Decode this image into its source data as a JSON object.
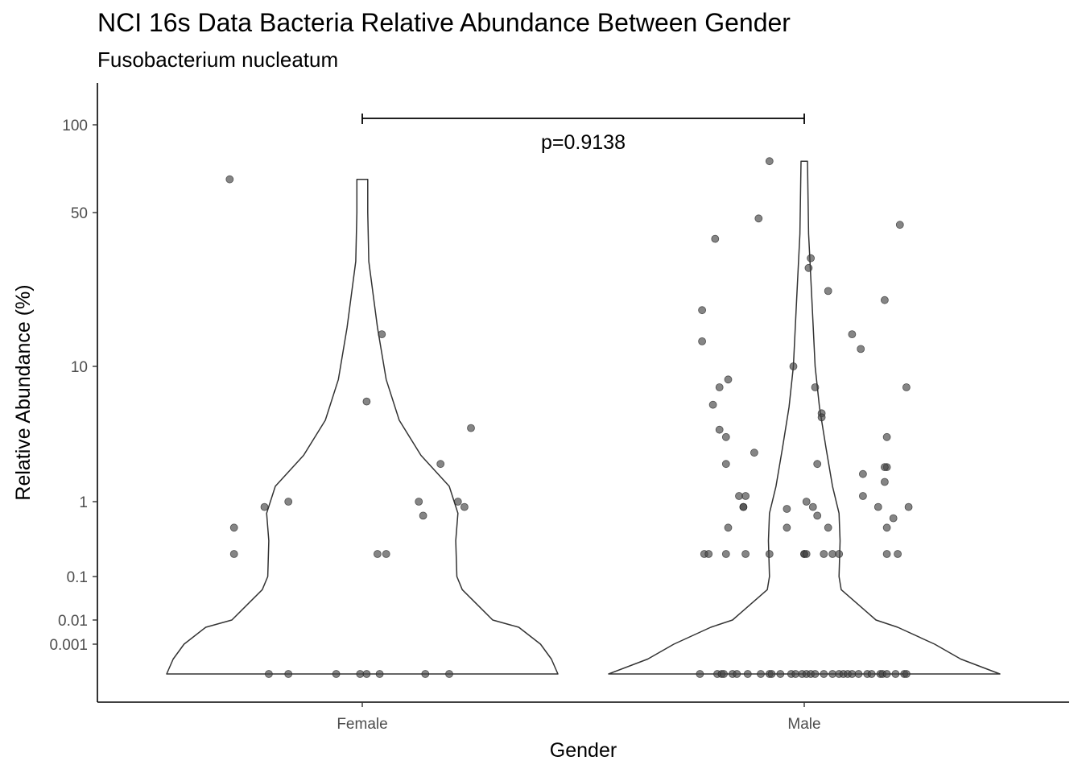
{
  "title": "NCI 16s Data Bacteria Relative Abundance Between Gender",
  "subtitle": "Fusobacterium nucleatum",
  "chart_data": {
    "type": "violin",
    "title": "NCI 16s Data Bacteria Relative Abundance Between Gender",
    "subtitle": "Fusobacterium nucleatum",
    "xlabel": "Gender",
    "ylabel": "Relative Abundance (%)",
    "categories": [
      "Female",
      "Male"
    ],
    "y_scale": "log-like",
    "y_ticks": [
      {
        "value": 100,
        "label": "100"
      },
      {
        "value": 50,
        "label": "50"
      },
      {
        "value": 10,
        "label": "10"
      },
      {
        "value": 1,
        "label": "1"
      },
      {
        "value": 0.1,
        "label": "0.1"
      },
      {
        "value": 0.01,
        "label": "0.01"
      },
      {
        "value": 0.001,
        "label": "0.001"
      }
    ],
    "annotation": {
      "text": "p=0.9138",
      "from": "Female",
      "to": "Male"
    },
    "violin_color": "#333333",
    "point_color": "#444444",
    "points": {
      "Female": [
        {
          "x": -0.61,
          "y": 65
        },
        {
          "x": -0.59,
          "y": 0.45
        },
        {
          "x": -0.59,
          "y": 0.2
        },
        {
          "x": -0.45,
          "y": 0.85
        },
        {
          "x": -0.34,
          "y": 1.0
        },
        {
          "x": 0.02,
          "y": 5.5
        },
        {
          "x": 0.09,
          "y": 14
        },
        {
          "x": 0.07,
          "y": 0.2
        },
        {
          "x": 0.11,
          "y": 0.2
        },
        {
          "x": 0.26,
          "y": 1.0
        },
        {
          "x": 0.28,
          "y": 0.65
        },
        {
          "x": 0.36,
          "y": 1.9
        },
        {
          "x": 0.44,
          "y": 1.0
        },
        {
          "x": 0.47,
          "y": 0.85
        },
        {
          "x": 0.5,
          "y": 3.5
        },
        {
          "x": -0.43,
          "y": 0
        },
        {
          "x": -0.34,
          "y": 0
        },
        {
          "x": -0.12,
          "y": 0
        },
        {
          "x": -0.01,
          "y": 0
        },
        {
          "x": 0.02,
          "y": 0
        },
        {
          "x": 0.08,
          "y": 0
        },
        {
          "x": 0.29,
          "y": 0
        },
        {
          "x": 0.4,
          "y": 0
        }
      ],
      "Male": [
        {
          "x": 0.0,
          "y": 0.2
        },
        {
          "x": 0.0,
          "y": 0.2
        },
        {
          "x": 0.09,
          "y": 0.2
        },
        {
          "x": 0.13,
          "y": 0.2
        },
        {
          "x": 0.16,
          "y": 0.2
        },
        {
          "x": 0.38,
          "y": 0.2
        },
        {
          "x": 0.43,
          "y": 0.2
        },
        {
          "x": -0.46,
          "y": 0.2
        },
        {
          "x": -0.44,
          "y": 0.2
        },
        {
          "x": -0.36,
          "y": 0.2
        },
        {
          "x": -0.27,
          "y": 0.2
        },
        {
          "x": -0.16,
          "y": 0.2
        },
        {
          "x": 0.01,
          "y": 0.2
        },
        {
          "x": -0.16,
          "y": 75
        },
        {
          "x": -0.21,
          "y": 47
        },
        {
          "x": -0.41,
          "y": 38
        },
        {
          "x": 0.03,
          "y": 31
        },
        {
          "x": 0.02,
          "y": 28
        },
        {
          "x": 0.44,
          "y": 44
        },
        {
          "x": 0.11,
          "y": 22
        },
        {
          "x": 0.37,
          "y": 20
        },
        {
          "x": -0.47,
          "y": 18
        },
        {
          "x": -0.47,
          "y": 13
        },
        {
          "x": 0.22,
          "y": 14
        },
        {
          "x": 0.26,
          "y": 12
        },
        {
          "x": -0.05,
          "y": 10
        },
        {
          "x": -0.35,
          "y": 8
        },
        {
          "x": -0.39,
          "y": 7
        },
        {
          "x": 0.05,
          "y": 7
        },
        {
          "x": 0.47,
          "y": 7
        },
        {
          "x": -0.42,
          "y": 5.2
        },
        {
          "x": 0.08,
          "y": 4.5
        },
        {
          "x": 0.08,
          "y": 4.2
        },
        {
          "x": -0.39,
          "y": 3.4
        },
        {
          "x": -0.36,
          "y": 3.0
        },
        {
          "x": 0.38,
          "y": 3.0
        },
        {
          "x": -0.23,
          "y": 2.3
        },
        {
          "x": -0.36,
          "y": 1.9
        },
        {
          "x": 0.06,
          "y": 1.9
        },
        {
          "x": 0.38,
          "y": 1.8
        },
        {
          "x": 0.37,
          "y": 1.8
        },
        {
          "x": 0.27,
          "y": 1.6
        },
        {
          "x": 0.37,
          "y": 1.4
        },
        {
          "x": -0.3,
          "y": 1.1
        },
        {
          "x": -0.27,
          "y": 1.1
        },
        {
          "x": 0.27,
          "y": 1.1
        },
        {
          "x": 0.01,
          "y": 1.0
        },
        {
          "x": -0.28,
          "y": 0.85
        },
        {
          "x": -0.28,
          "y": 0.85
        },
        {
          "x": -0.08,
          "y": 0.8
        },
        {
          "x": 0.04,
          "y": 0.85
        },
        {
          "x": 0.34,
          "y": 0.85
        },
        {
          "x": 0.48,
          "y": 0.85
        },
        {
          "x": 0.06,
          "y": 0.65
        },
        {
          "x": 0.41,
          "y": 0.6
        },
        {
          "x": -0.35,
          "y": 0.45
        },
        {
          "x": -0.08,
          "y": 0.45
        },
        {
          "x": 0.11,
          "y": 0.45
        },
        {
          "x": 0.38,
          "y": 0.45
        },
        {
          "x": -0.48,
          "y": 0
        },
        {
          "x": -0.4,
          "y": 0
        },
        {
          "x": -0.38,
          "y": 0
        },
        {
          "x": -0.37,
          "y": 0
        },
        {
          "x": -0.33,
          "y": 0
        },
        {
          "x": -0.31,
          "y": 0
        },
        {
          "x": -0.26,
          "y": 0
        },
        {
          "x": -0.2,
          "y": 0
        },
        {
          "x": -0.16,
          "y": 0
        },
        {
          "x": -0.15,
          "y": 0
        },
        {
          "x": -0.11,
          "y": 0
        },
        {
          "x": -0.06,
          "y": 0
        },
        {
          "x": -0.04,
          "y": 0
        },
        {
          "x": -0.01,
          "y": 0
        },
        {
          "x": 0.01,
          "y": 0
        },
        {
          "x": 0.03,
          "y": 0
        },
        {
          "x": 0.05,
          "y": 0
        },
        {
          "x": 0.09,
          "y": 0
        },
        {
          "x": 0.13,
          "y": 0
        },
        {
          "x": 0.16,
          "y": 0
        },
        {
          "x": 0.18,
          "y": 0
        },
        {
          "x": 0.2,
          "y": 0
        },
        {
          "x": 0.22,
          "y": 0
        },
        {
          "x": 0.25,
          "y": 0
        },
        {
          "x": 0.29,
          "y": 0
        },
        {
          "x": 0.31,
          "y": 0
        },
        {
          "x": 0.35,
          "y": 0
        },
        {
          "x": 0.36,
          "y": 0
        },
        {
          "x": 0.38,
          "y": 0
        },
        {
          "x": 0.42,
          "y": 0
        },
        {
          "x": 0.46,
          "y": 0
        },
        {
          "x": 0.47,
          "y": 0
        }
      ]
    },
    "violins": {
      "Female": {
        "max": 65,
        "profile": [
          [
            0,
            0.9
          ],
          [
            0.0005,
            0.87
          ],
          [
            0.001,
            0.82
          ],
          [
            0.005,
            0.72
          ],
          [
            0.01,
            0.6
          ],
          [
            0.05,
            0.46
          ],
          [
            0.1,
            0.435
          ],
          [
            0.3,
            0.43
          ],
          [
            0.7,
            0.44
          ],
          [
            1.3,
            0.4
          ],
          [
            2.2,
            0.27
          ],
          [
            4,
            0.17
          ],
          [
            8,
            0.11
          ],
          [
            15,
            0.07
          ],
          [
            30,
            0.03
          ],
          [
            50,
            0.025
          ],
          [
            65,
            0.025
          ]
        ]
      },
      "Male": {
        "max": 75,
        "profile": [
          [
            0,
            0.9
          ],
          [
            0.0005,
            0.72
          ],
          [
            0.001,
            0.6
          ],
          [
            0.005,
            0.43
          ],
          [
            0.01,
            0.33
          ],
          [
            0.05,
            0.17
          ],
          [
            0.1,
            0.16
          ],
          [
            0.3,
            0.165
          ],
          [
            0.7,
            0.16
          ],
          [
            1.3,
            0.13
          ],
          [
            2.5,
            0.1
          ],
          [
            5,
            0.07
          ],
          [
            10,
            0.05
          ],
          [
            20,
            0.035
          ],
          [
            40,
            0.02
          ],
          [
            75,
            0.015
          ]
        ]
      }
    }
  }
}
